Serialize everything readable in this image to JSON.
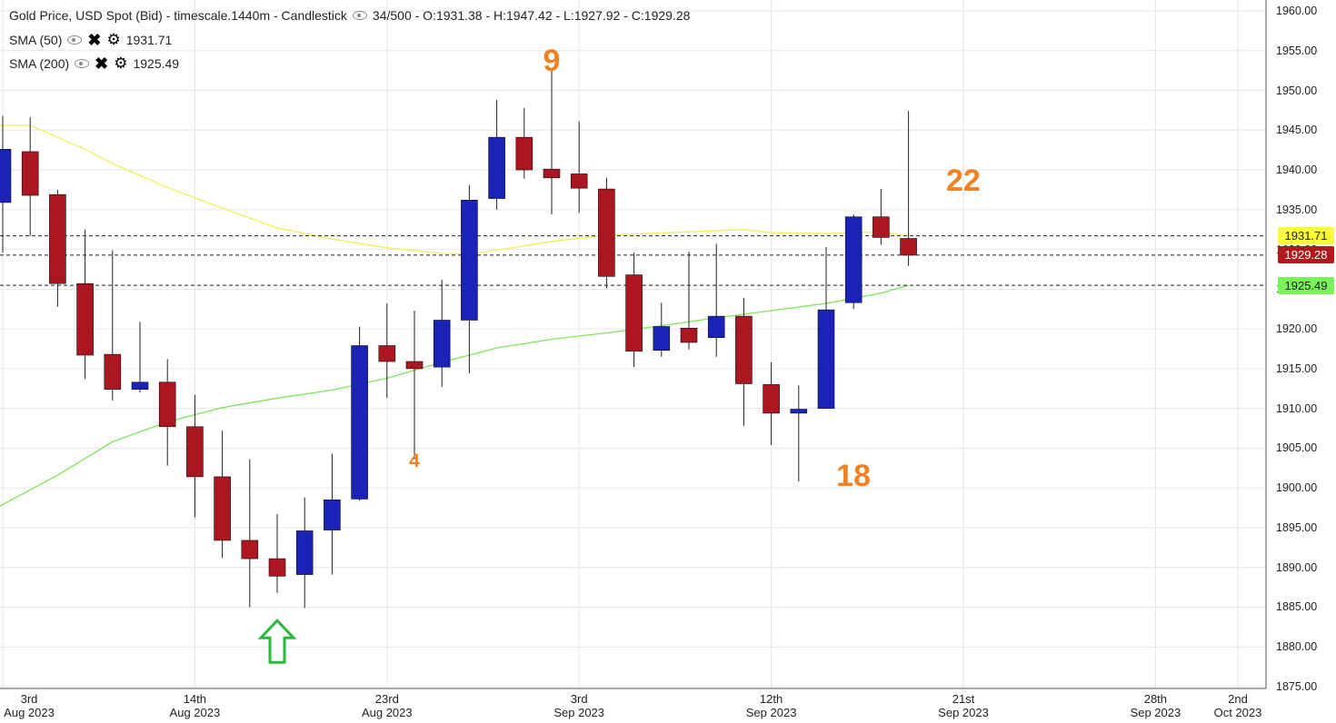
{
  "header": {
    "title": "Gold Price, USD Spot (Bid) - timescale.1440m - Candlestick",
    "ohlc": "34/500 - O:1931.38 - H:1947.42 - L:1927.92 - C:1929.28"
  },
  "indicators": [
    {
      "label": "SMA (50)",
      "value": "1931.71",
      "color": "#f2ef5a"
    },
    {
      "label": "SMA (200)",
      "value": "1925.49",
      "color": "#7fe45a"
    }
  ],
  "price_labels": [
    {
      "text": "1931.71",
      "price": 1931.71,
      "bg": "#fbfb3c",
      "fg": "#222222"
    },
    {
      "text": "1929.28",
      "price": 1929.28,
      "bg": "#b01a1a",
      "fg": "#ffffff"
    },
    {
      "text": "1925.49",
      "price": 1925.49,
      "bg": "#79f35a",
      "fg": "#222222"
    }
  ],
  "annotations": [
    {
      "text": "9",
      "price": 1953.5,
      "day": 20,
      "size": "big"
    },
    {
      "text": "4",
      "price": 1903.3,
      "day": 15,
      "size": "small"
    },
    {
      "text": "18",
      "price": 1901.3,
      "day": 31,
      "size": "big"
    },
    {
      "text": "22",
      "price": 1938.5,
      "day": 35,
      "size": "big"
    }
  ],
  "arrow_marker": {
    "day": 10,
    "price": 1884.0,
    "color": "#2db53f"
  },
  "chart_data": {
    "type": "candlestick",
    "title": "Gold Price, USD Spot (Bid) - timescale.1440m - Candlestick",
    "ylim": [
      1875,
      1960
    ],
    "yticks": [
      "1875.00",
      "1880.00",
      "1885.00",
      "1890.00",
      "1895.00",
      "1900.00",
      "1905.00",
      "1910.00",
      "1915.00",
      "1920.00",
      "1925.00",
      "1930.00",
      "1935.00",
      "1940.00",
      "1945.00",
      "1950.00",
      "1955.00",
      "1960.00"
    ],
    "xticks": [
      {
        "day": 0,
        "line1": "3rd",
        "line2": "Aug 2023"
      },
      {
        "day": 7,
        "line1": "14th",
        "line2": "Aug 2023"
      },
      {
        "day": 14,
        "line1": "23rd",
        "line2": "Aug 2023"
      },
      {
        "day": 21,
        "line1": "3rd",
        "line2": "Sep 2023"
      },
      {
        "day": 28,
        "line1": "12th",
        "line2": "Sep 2023"
      },
      {
        "day": 35,
        "line1": "21st",
        "line2": "Sep 2023"
      },
      {
        "day": 42,
        "line1": "28th",
        "line2": "Sep 2023"
      },
      {
        "day": 45,
        "line1": "2nd",
        "line2": "Oct 2023"
      }
    ],
    "up_color": "#1a22b8",
    "down_color": "#ab1620",
    "candles": [
      {
        "o": 1935.9,
        "h": 1946.8,
        "l": 1929.6,
        "c": 1942.6
      },
      {
        "o": 1942.3,
        "h": 1946.6,
        "l": 1931.7,
        "c": 1936.8
      },
      {
        "o": 1936.9,
        "h": 1937.5,
        "l": 1922.8,
        "c": 1925.7
      },
      {
        "o": 1925.7,
        "h": 1932.5,
        "l": 1913.7,
        "c": 1916.7
      },
      {
        "o": 1916.8,
        "h": 1929.9,
        "l": 1911.0,
        "c": 1912.4
      },
      {
        "o": 1912.4,
        "h": 1920.9,
        "l": 1912.0,
        "c": 1913.3
      },
      {
        "o": 1913.3,
        "h": 1916.2,
        "l": 1902.8,
        "c": 1907.7
      },
      {
        "o": 1907.7,
        "h": 1911.7,
        "l": 1896.3,
        "c": 1901.4
      },
      {
        "o": 1901.4,
        "h": 1907.2,
        "l": 1891.2,
        "c": 1893.4
      },
      {
        "o": 1893.4,
        "h": 1903.6,
        "l": 1885.0,
        "c": 1891.1
      },
      {
        "o": 1891.1,
        "h": 1896.7,
        "l": 1886.8,
        "c": 1888.9
      },
      {
        "o": 1889.1,
        "h": 1898.8,
        "l": 1884.9,
        "c": 1894.6
      },
      {
        "o": 1894.7,
        "h": 1904.3,
        "l": 1889.1,
        "c": 1898.5
      },
      {
        "o": 1898.6,
        "h": 1920.3,
        "l": 1898.4,
        "c": 1917.9
      },
      {
        "o": 1917.9,
        "h": 1923.2,
        "l": 1911.3,
        "c": 1915.9
      },
      {
        "o": 1915.9,
        "h": 1922.3,
        "l": 1903.6,
        "c": 1915.0
      },
      {
        "o": 1915.2,
        "h": 1926.2,
        "l": 1912.7,
        "c": 1921.1
      },
      {
        "o": 1921.1,
        "h": 1938.1,
        "l": 1914.4,
        "c": 1936.2
      },
      {
        "o": 1936.4,
        "h": 1948.8,
        "l": 1935.0,
        "c": 1944.1
      },
      {
        "o": 1944.1,
        "h": 1947.8,
        "l": 1938.9,
        "c": 1940.0
      },
      {
        "o": 1940.1,
        "h": 1952.8,
        "l": 1934.4,
        "c": 1939.0
      },
      {
        "o": 1939.5,
        "h": 1946.1,
        "l": 1934.6,
        "c": 1937.7
      },
      {
        "o": 1937.6,
        "h": 1939.0,
        "l": 1925.1,
        "c": 1926.6
      },
      {
        "o": 1926.8,
        "h": 1929.6,
        "l": 1915.2,
        "c": 1917.2
      },
      {
        "o": 1917.3,
        "h": 1923.3,
        "l": 1916.5,
        "c": 1920.3
      },
      {
        "o": 1920.1,
        "h": 1929.7,
        "l": 1917.4,
        "c": 1918.3
      },
      {
        "o": 1918.9,
        "h": 1930.7,
        "l": 1916.5,
        "c": 1921.6
      },
      {
        "o": 1921.6,
        "h": 1923.9,
        "l": 1907.8,
        "c": 1913.1
      },
      {
        "o": 1913.0,
        "h": 1915.8,
        "l": 1905.4,
        "c": 1909.4
      },
      {
        "o": 1909.4,
        "h": 1912.9,
        "l": 1900.8,
        "c": 1909.9
      },
      {
        "o": 1910.0,
        "h": 1930.3,
        "l": 1910.0,
        "c": 1922.4
      },
      {
        "o": 1923.3,
        "h": 1934.4,
        "l": 1922.5,
        "c": 1934.1
      },
      {
        "o": 1934.1,
        "h": 1937.6,
        "l": 1930.6,
        "c": 1931.5
      },
      {
        "o": 1931.38,
        "h": 1947.42,
        "l": 1927.92,
        "c": 1929.28
      }
    ],
    "series": [
      {
        "name": "SMA (50)",
        "color": "#f2ef5a",
        "points": [
          [
            -0.5,
            1945.6
          ],
          [
            1,
            1945.6
          ],
          [
            3,
            1942.6
          ],
          [
            4,
            1940.8
          ],
          [
            6,
            1937.8
          ],
          [
            8,
            1935.2
          ],
          [
            10,
            1932.7
          ],
          [
            12,
            1931.3
          ],
          [
            14,
            1930.2
          ],
          [
            16,
            1929.5
          ],
          [
            17,
            1929.4
          ],
          [
            18,
            1929.9
          ],
          [
            20,
            1931.0
          ],
          [
            22,
            1931.8
          ],
          [
            25,
            1932.2
          ],
          [
            27,
            1932.5
          ],
          [
            28,
            1932.1
          ],
          [
            30,
            1932.0
          ],
          [
            32,
            1932.2
          ],
          [
            33,
            1931.71
          ]
        ]
      },
      {
        "name": "SMA (200)",
        "color": "#7fe45a",
        "points": [
          [
            -0.5,
            1897.0
          ],
          [
            2,
            1901.6
          ],
          [
            4,
            1905.8
          ],
          [
            6,
            1908.3
          ],
          [
            8,
            1910.1
          ],
          [
            10,
            1911.3
          ],
          [
            12,
            1912.3
          ],
          [
            14,
            1913.8
          ],
          [
            16,
            1915.8
          ],
          [
            18,
            1917.6
          ],
          [
            20,
            1918.7
          ],
          [
            22,
            1919.5
          ],
          [
            24,
            1920.4
          ],
          [
            26,
            1921.4
          ],
          [
            28,
            1922.3
          ],
          [
            30,
            1923.2
          ],
          [
            32,
            1924.5
          ],
          [
            33,
            1925.49
          ]
        ]
      }
    ]
  }
}
